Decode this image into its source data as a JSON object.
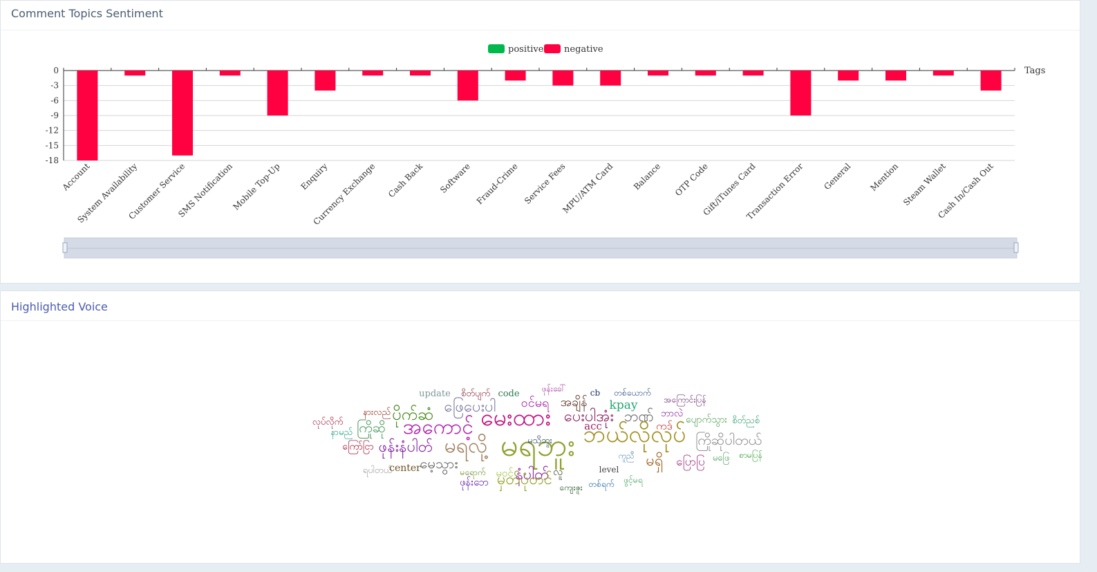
{
  "sentiment_card": {
    "title": "Comment Topics Sentiment"
  },
  "voice_card": {
    "title": "Highlighted Voice"
  },
  "colors": {
    "positive": "#00b84c",
    "negative": "#ff0040",
    "zoom_fill": "#d5dbe6"
  },
  "chart_data": {
    "type": "bar",
    "xlabel": "Tags",
    "ylabel": "",
    "ylim": [
      -18,
      0
    ],
    "yticks": [
      0,
      -3,
      -6,
      -9,
      -12,
      -15,
      -18
    ],
    "legend": [
      "positive",
      "negative"
    ],
    "legend_position": "top-center",
    "grid": true,
    "categories": [
      "Account",
      "System Availability",
      "Customer Service",
      "SMS Notification",
      "Mobile Top-Up",
      "Enquiry",
      "Currency Exchange",
      "Cash Back",
      "Software",
      "Fraud-Crime",
      "Service Fees",
      "MPU/ATM Card",
      "Balance",
      "OTP Code",
      "Gift/iTunes Card",
      "Transaction Error",
      "General",
      "Mention",
      "Steam Wallet",
      "Cash In/Cash Out"
    ],
    "series": [
      {
        "name": "positive",
        "values": [
          0,
          0,
          0,
          0,
          0,
          0,
          0,
          0,
          0,
          0,
          0,
          0,
          0,
          0,
          0,
          0,
          0,
          0,
          0,
          0
        ]
      },
      {
        "name": "negative",
        "values": [
          -18,
          -1,
          -17,
          -1,
          -9,
          -4,
          -1,
          -1,
          -6,
          -2,
          -3,
          -3,
          -1,
          -1,
          -1,
          -9,
          -2,
          -2,
          -1,
          -4
        ]
      }
    ]
  },
  "word_cloud": [
    {
      "text": "update",
      "color": "#7a9a96",
      "size": 13,
      "latin": true
    },
    {
      "text": "စိတ်ပျက်",
      "color": "#8a2a40",
      "size": 13
    },
    {
      "text": "code",
      "color": "#2a7a50",
      "size": 13,
      "latin": true
    },
    {
      "text": "ဝင်မရ",
      "color": "#a020a0",
      "size": 18
    },
    {
      "text": "ဖုန်းခေါ်",
      "color": "#a040a0",
      "size": 12
    },
    {
      "text": "cb",
      "color": "#223366",
      "size": 12,
      "latin": true
    },
    {
      "text": "အချိန်",
      "color": "#5a3020",
      "size": 18
    },
    {
      "text": "kpay",
      "color": "#20a870",
      "size": 17,
      "latin": true
    },
    {
      "text": "တစ်ယောက်",
      "color": "#2a4a80",
      "size": 12
    },
    {
      "text": "အကြောင်းပြန်",
      "color": "#6a2a70",
      "size": 12
    },
    {
      "text": "နားလည်",
      "color": "#8a3020",
      "size": 13
    },
    {
      "text": "ပိုက်ဆံ",
      "color": "#4a8a20",
      "size": 24
    },
    {
      "text": "ဖြေပေးပါ",
      "color": "#7a7aa0",
      "size": 22
    },
    {
      "text": "မေးထား",
      "color": "#c01080",
      "size": 34
    },
    {
      "text": "ပေးပါအုံး",
      "color": "#8a2060",
      "size": 22
    },
    {
      "text": "ဘဏ်",
      "color": "#6a6a6a",
      "size": 22
    },
    {
      "text": "ဘာလဲ",
      "color": "#8a20a0",
      "size": 14
    },
    {
      "text": "ပျောက်သွား",
      "color": "#50a050",
      "size": 14
    },
    {
      "text": "စိတ်ညစ်",
      "color": "#30a070",
      "size": 13
    },
    {
      "text": "လုပ်လိုက်",
      "color": "#a02040",
      "size": 13
    },
    {
      "text": "နာမည်",
      "color": "#20a080",
      "size": 13
    },
    {
      "text": "ကြိုဆို",
      "color": "#4a9a60",
      "size": 20
    },
    {
      "text": "အကောင့်",
      "color": "#b020b0",
      "size": 30
    },
    {
      "text": "acc",
      "color": "#a02060",
      "size": 15,
      "latin": true
    },
    {
      "text": "ကဒ်",
      "color": "#c03030",
      "size": 16
    },
    {
      "text": "ကြိုဆိုပါတယ်",
      "color": "#909090",
      "size": 20
    },
    {
      "text": "ကြော်ငြာ",
      "color": "#a01030",
      "size": 14
    },
    {
      "text": "ဖုန်းနံပါတ်",
      "color": "#8020a0",
      "size": 22
    },
    {
      "text": "မရလို့",
      "color": "#a08060",
      "size": 30
    },
    {
      "text": "မရဘူး",
      "color": "#90a030",
      "size": 46
    },
    {
      "text": "ဘယ်လိုလုပ်",
      "color": "#a09020",
      "size": 34
    },
    {
      "text": "ကူညီ",
      "color": "#5a8ab0",
      "size": 12
    },
    {
      "text": "မရှိ",
      "color": "#a06020",
      "size": 22
    },
    {
      "text": "ပြောပြ",
      "color": "#a03080",
      "size": 17
    },
    {
      "text": "မဖြေ",
      "color": "#50a060",
      "size": 13
    },
    {
      "text": "စာမပြန်",
      "color": "#40a040",
      "size": 12
    },
    {
      "text": "မေ့သွား",
      "color": "#606060",
      "size": 20
    },
    {
      "text": "ရပါတယ်",
      "color": "#a0a0a0",
      "size": 13
    },
    {
      "text": "center",
      "color": "#6a5020",
      "size": 14,
      "latin": true
    },
    {
      "text": "မရောက်",
      "color": "#6a8a20",
      "size": 12
    },
    {
      "text": "မဝင်",
      "color": "#a0c040",
      "size": 15
    },
    {
      "text": "နံပါတ်",
      "color": "#9020a0",
      "size": 22
    },
    {
      "text": "လူ",
      "color": "#304020",
      "size": 15
    },
    {
      "text": "level",
      "color": "#404040",
      "size": 12,
      "latin": true
    },
    {
      "text": "ဖုန်းဘေ",
      "color": "#6020b0",
      "size": 15
    },
    {
      "text": "မှတ်ပုံတင်",
      "color": "#90a020",
      "size": 22
    },
    {
      "text": "ကျေးဇူး",
      "color": "#205020",
      "size": 12
    },
    {
      "text": "တစ်ရက်",
      "color": "#2060a0",
      "size": 12
    },
    {
      "text": "ဖွင့်မရ",
      "color": "#40a060",
      "size": 12
    },
    {
      "text": "မသိဘူး",
      "color": "#204060",
      "size": 13
    }
  ]
}
